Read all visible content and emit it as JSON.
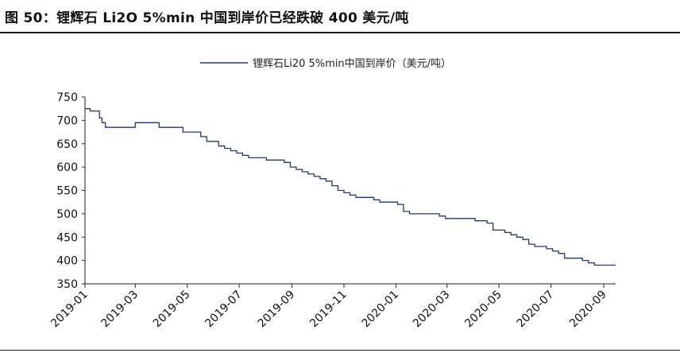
{
  "figure": {
    "title": "图 50：锂辉石 Li2O 5%min 中国到岸价已经跌破 400 美元/吨"
  },
  "chart_data": {
    "type": "line",
    "title": "",
    "xlabel": "",
    "ylabel": "",
    "legend_position": "top-center",
    "grid": false,
    "ylim": [
      350,
      750
    ],
    "yticks": [
      350,
      400,
      450,
      500,
      550,
      600,
      650,
      700,
      750
    ],
    "xlim": [
      "2019-01-01",
      "2020-09-15"
    ],
    "xticks": [
      "2019-01",
      "2019-03",
      "2019-05",
      "2019-07",
      "2019-09",
      "2019-11",
      "2020-01",
      "2020-03",
      "2020-05",
      "2020-07",
      "2020-09"
    ],
    "series": [
      {
        "name": "锂辉石Li20 5%min中国到岸价（美元/吨）",
        "color": "#1f3a6b",
        "x": [
          "2019-01-01",
          "2019-01-04",
          "2019-01-07",
          "2019-01-14",
          "2019-01-18",
          "2019-01-21",
          "2019-01-25",
          "2019-02-01",
          "2019-02-08",
          "2019-02-15",
          "2019-02-22",
          "2019-03-01",
          "2019-03-08",
          "2019-03-15",
          "2019-03-22",
          "2019-03-29",
          "2019-04-05",
          "2019-04-12",
          "2019-04-19",
          "2019-04-26",
          "2019-05-03",
          "2019-05-10",
          "2019-05-17",
          "2019-05-24",
          "2019-05-31",
          "2019-06-07",
          "2019-06-14",
          "2019-06-21",
          "2019-06-28",
          "2019-07-05",
          "2019-07-12",
          "2019-07-19",
          "2019-07-26",
          "2019-08-02",
          "2019-08-09",
          "2019-08-16",
          "2019-08-23",
          "2019-08-30",
          "2019-09-06",
          "2019-09-13",
          "2019-09-20",
          "2019-09-27",
          "2019-10-04",
          "2019-10-11",
          "2019-10-18",
          "2019-10-25",
          "2019-11-01",
          "2019-11-08",
          "2019-11-15",
          "2019-11-22",
          "2019-11-29",
          "2019-12-06",
          "2019-12-13",
          "2019-12-20",
          "2019-12-27",
          "2020-01-03",
          "2020-01-10",
          "2020-01-17",
          "2020-01-24",
          "2020-01-31",
          "2020-02-07",
          "2020-02-14",
          "2020-02-21",
          "2020-02-28",
          "2020-03-06",
          "2020-03-13",
          "2020-03-20",
          "2020-03-27",
          "2020-04-03",
          "2020-04-10",
          "2020-04-17",
          "2020-04-24",
          "2020-05-01",
          "2020-05-08",
          "2020-05-15",
          "2020-05-22",
          "2020-05-29",
          "2020-06-05",
          "2020-06-12",
          "2020-06-19",
          "2020-06-26",
          "2020-07-03",
          "2020-07-10",
          "2020-07-17",
          "2020-07-24",
          "2020-07-31",
          "2020-08-07",
          "2020-08-14",
          "2020-08-21",
          "2020-08-28",
          "2020-09-04",
          "2020-09-11"
        ],
        "values": [
          725,
          725,
          720,
          720,
          705,
          695,
          685,
          685,
          685,
          685,
          685,
          695,
          695,
          695,
          695,
          685,
          685,
          685,
          685,
          675,
          675,
          675,
          665,
          655,
          655,
          645,
          640,
          635,
          630,
          625,
          620,
          620,
          620,
          615,
          615,
          615,
          610,
          600,
          595,
          590,
          585,
          580,
          575,
          570,
          560,
          550,
          545,
          540,
          535,
          535,
          535,
          530,
          525,
          525,
          525,
          520,
          505,
          500,
          500,
          500,
          500,
          500,
          495,
          490,
          490,
          490,
          490,
          490,
          485,
          485,
          480,
          465,
          465,
          460,
          455,
          450,
          445,
          435,
          430,
          430,
          425,
          420,
          415,
          405,
          405,
          405,
          400,
          395,
          390,
          390,
          390,
          390
        ]
      }
    ]
  }
}
